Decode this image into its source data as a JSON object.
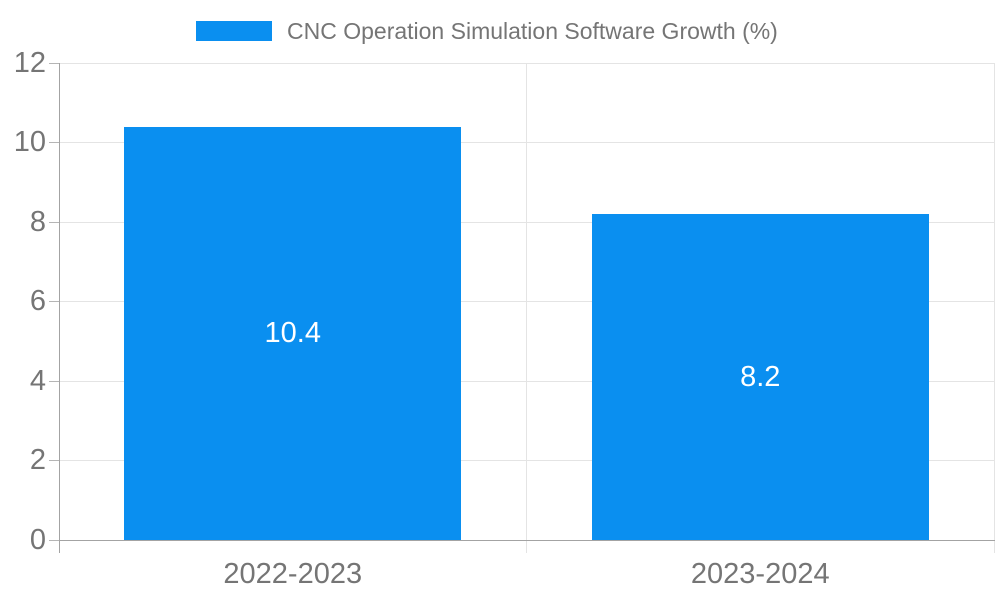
{
  "legend": {
    "label": "CNC Operation Simulation Software Growth (%)"
  },
  "chart_data": {
    "type": "bar",
    "title": "CNC Operation Simulation Software Growth (%)",
    "categories": [
      "2022-2023",
      "2023-2024"
    ],
    "values": [
      10.4,
      8.2
    ],
    "bar_labels": [
      "10.4",
      "8.2"
    ],
    "xlabel": "",
    "ylabel": "",
    "ylim": [
      0,
      12
    ],
    "y_ticks": [
      0,
      2,
      4,
      6,
      8,
      10,
      12
    ],
    "grid": true,
    "legend_position": "top-center",
    "bar_label_position": "inside-center"
  },
  "colors": {
    "bar": "#0a8ff0",
    "bar_label_text": "#ffffff",
    "axis_line": "#a3a3a3",
    "tick_line": "#b5b5b5",
    "gridline": "#e4e4e4",
    "text": "#757575",
    "background": "#ffffff"
  }
}
